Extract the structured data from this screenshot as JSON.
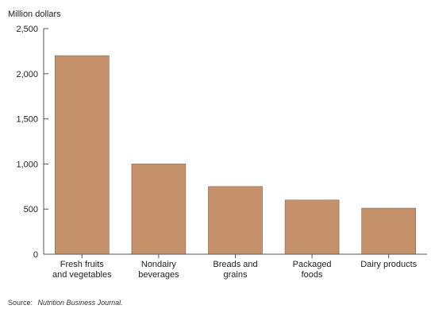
{
  "chart_data": {
    "type": "bar",
    "title": "",
    "ylabel": "Million dollars",
    "xlabel": "",
    "ylim": [
      0,
      2500
    ],
    "yticks": [
      0,
      500,
      1000,
      1500,
      2000,
      2500
    ],
    "ytick_labels": [
      "0",
      "500",
      "1,000",
      "1,500",
      "2,000",
      "2,500"
    ],
    "categories": [
      [
        "Fresh fruits",
        "and vegetables"
      ],
      [
        "Nondairy",
        "beverages"
      ],
      [
        "Breads and",
        "grains"
      ],
      [
        "Packaged",
        "foods"
      ],
      [
        "Dairy products"
      ]
    ],
    "values": [
      2200,
      1000,
      750,
      600,
      510
    ],
    "grid": false,
    "bar_color": "#c4916a",
    "bar_stroke": "#8a6040"
  },
  "source": {
    "prefix": "Source:",
    "text": "Nutrition Business Journal."
  }
}
